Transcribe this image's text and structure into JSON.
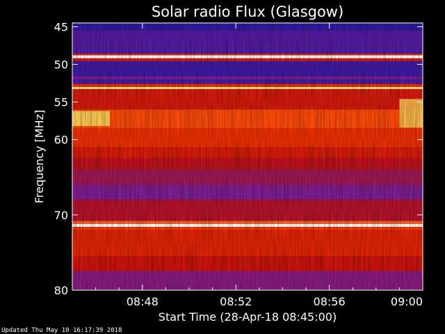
{
  "chart_data": {
    "type": "heatmap",
    "title": "Solar radio Flux (Glasgow)",
    "xlabel": "Start Time (28-Apr-18 08:45:00)",
    "ylabel": "Frequency [MHz]",
    "x_ticks": [
      "08:48",
      "08:52",
      "08:56",
      "09:00"
    ],
    "x_tick_minutes": [
      48,
      52,
      56,
      60
    ],
    "xlim_minutes": [
      45,
      60
    ],
    "y_ticks": [
      45,
      50,
      55,
      60,
      70,
      80
    ],
    "ylim": [
      44.5,
      80
    ],
    "colormap": [
      "#1a1aa8",
      "#7a1fa0",
      "#c81010",
      "#ff3a00",
      "#ffe060",
      "#ffffff"
    ],
    "bands": [
      {
        "from": 44.5,
        "to": 45.5,
        "intensity": 0.05
      },
      {
        "from": 45.5,
        "to": 48.6,
        "intensity": 0.12
      },
      {
        "from": 48.6,
        "to": 48.8,
        "intensity": 0.55
      },
      {
        "from": 48.8,
        "to": 49.2,
        "intensity": 1.0
      },
      {
        "from": 49.2,
        "to": 49.6,
        "intensity": 0.45
      },
      {
        "from": 49.6,
        "to": 51.6,
        "intensity": 0.08
      },
      {
        "from": 51.6,
        "to": 52.0,
        "intensity": 0.2
      },
      {
        "from": 52.0,
        "to": 52.6,
        "intensity": 0.1
      },
      {
        "from": 52.6,
        "to": 53.0,
        "intensity": 0.55
      },
      {
        "from": 53.0,
        "to": 53.3,
        "intensity": 0.85
      },
      {
        "from": 53.3,
        "to": 56.0,
        "intensity": 0.45
      },
      {
        "from": 56.0,
        "to": 58.5,
        "intensity": 0.62
      },
      {
        "from": 58.5,
        "to": 61.0,
        "intensity": 0.55
      },
      {
        "from": 61.0,
        "to": 62.5,
        "intensity": 0.46
      },
      {
        "from": 62.5,
        "to": 64.0,
        "intensity": 0.38
      },
      {
        "from": 64.0,
        "to": 66.0,
        "intensity": 0.3
      },
      {
        "from": 66.0,
        "to": 68.0,
        "intensity": 0.22
      },
      {
        "from": 68.0,
        "to": 70.8,
        "intensity": 0.36
      },
      {
        "from": 70.8,
        "to": 71.2,
        "intensity": 0.65
      },
      {
        "from": 71.2,
        "to": 71.6,
        "intensity": 1.0
      },
      {
        "from": 71.6,
        "to": 72.0,
        "intensity": 0.6
      },
      {
        "from": 72.0,
        "to": 75.5,
        "intensity": 0.5
      },
      {
        "from": 75.5,
        "to": 77.5,
        "intensity": 0.42
      },
      {
        "from": 77.5,
        "to": 80.0,
        "intensity": 0.24
      }
    ],
    "bursts": [
      {
        "t_start": 45.0,
        "t_end": 46.6,
        "f_low": 56.2,
        "f_high": 58.2,
        "intensity": 0.8
      },
      {
        "t_start": 59.0,
        "t_end": 60.0,
        "f_low": 54.6,
        "f_high": 58.4,
        "intensity": 0.78
      }
    ],
    "grid": false
  },
  "footer": {
    "updated": "Updated Thu May 10 16:17:39 2018"
  }
}
